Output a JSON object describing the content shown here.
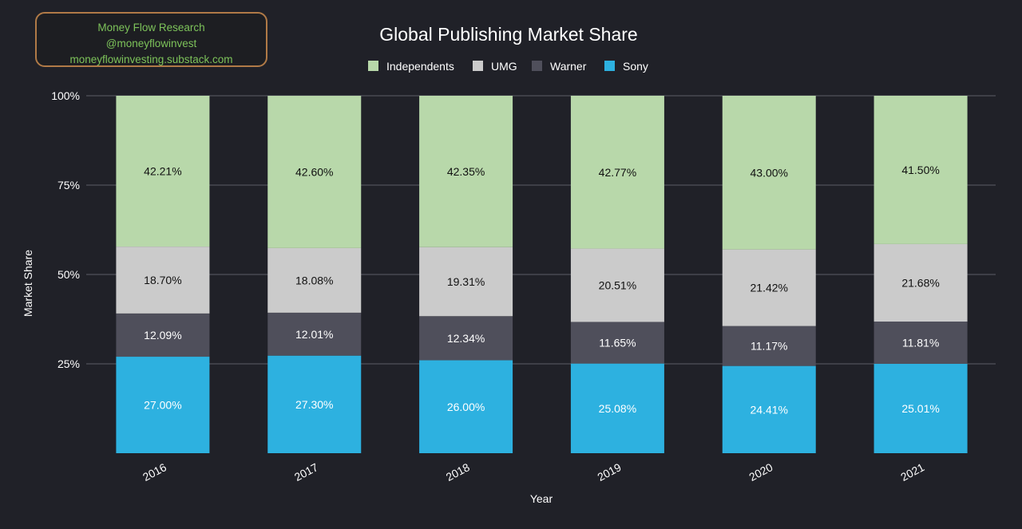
{
  "badge": {
    "line1": "Money Flow Research",
    "line2": "@moneyflowinvest",
    "line3": "moneyflowinvesting.substack.com"
  },
  "chart_data": {
    "type": "bar",
    "stacked": true,
    "title": "Global Publishing Market Share",
    "xlabel": "Year",
    "ylabel": "Market Share",
    "categories": [
      "2016",
      "2017",
      "2018",
      "2019",
      "2020",
      "2021"
    ],
    "yticks": [
      "25%",
      "50%",
      "75%",
      "100%"
    ],
    "ylim": [
      0,
      100
    ],
    "grid": true,
    "legend_position": "top",
    "series": [
      {
        "name": "Sony",
        "color": "#2db1e0",
        "values": [
          27.0,
          27.3,
          26.0,
          25.08,
          24.41,
          25.01
        ],
        "labels": [
          "27.00%",
          "27.30%",
          "26.00%",
          "25.08%",
          "24.41%",
          "25.01%"
        ],
        "label_color": "#ffffff"
      },
      {
        "name": "Warner",
        "color": "#4f4f5b",
        "values": [
          12.09,
          12.01,
          12.34,
          11.65,
          11.17,
          11.81
        ],
        "labels": [
          "12.09%",
          "12.01%",
          "12.34%",
          "11.65%",
          "11.17%",
          "11.81%"
        ],
        "label_color": "#ffffff"
      },
      {
        "name": "UMG",
        "color": "#cbcbcb",
        "values": [
          18.7,
          18.08,
          19.31,
          20.51,
          21.42,
          21.68
        ],
        "labels": [
          "18.70%",
          "18.08%",
          "19.31%",
          "20.51%",
          "21.42%",
          "21.68%"
        ],
        "label_color": "#111111"
      },
      {
        "name": "Independents",
        "color": "#b8d8aa",
        "values": [
          42.21,
          42.6,
          42.35,
          42.77,
          43.0,
          41.5
        ],
        "labels": [
          "42.21%",
          "42.60%",
          "42.35%",
          "42.77%",
          "43.00%",
          "41.50%"
        ],
        "label_color": "#111111"
      }
    ],
    "legend_order": [
      "Independents",
      "UMG",
      "Warner",
      "Sony"
    ]
  }
}
